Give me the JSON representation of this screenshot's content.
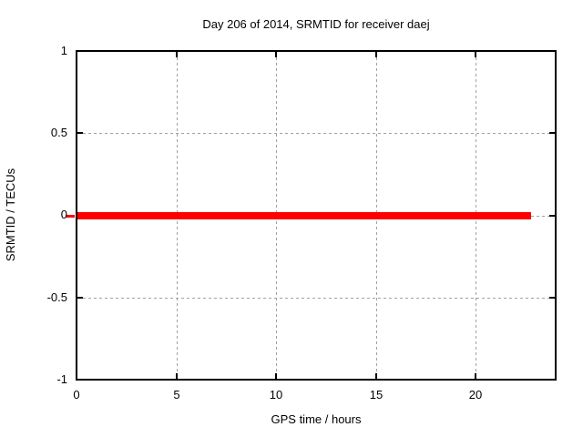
{
  "figure": {
    "background_color": "#ffffff",
    "text_color": "#000000"
  },
  "chart_data": {
    "type": "line",
    "title": "Day 206 of 2014, SRMTID for receiver daej",
    "xlabel": "GPS time / hours",
    "ylabel": "SRMTID / TECUs",
    "xlim": [
      0,
      24
    ],
    "ylim": [
      -1,
      1
    ],
    "x_ticks": [
      0,
      5,
      10,
      15,
      20
    ],
    "y_ticks": [
      1,
      0.5,
      0,
      -0.5,
      -1
    ],
    "x_tick_labels": [
      "0",
      "5",
      "10",
      "15",
      "20"
    ],
    "y_tick_labels": [
      "1",
      "0.5",
      "0",
      "-0.5",
      "-1"
    ],
    "grid": "dotted, at every major tick, both axes",
    "legend": "none",
    "series": [
      {
        "name": "SRMTID",
        "style": "thick solid horizontal line",
        "color": "#ff0000",
        "x_start": 0,
        "x_end": 22.8,
        "y_value": 0,
        "description": "Constant value 0 TECUs from hour 0 to ~22.8"
      }
    ],
    "colors": {
      "line": "#ff0000",
      "grid": "#a0a0a0",
      "axis_border": "#000000",
      "text": "#000000",
      "background": "#ffffff"
    }
  }
}
